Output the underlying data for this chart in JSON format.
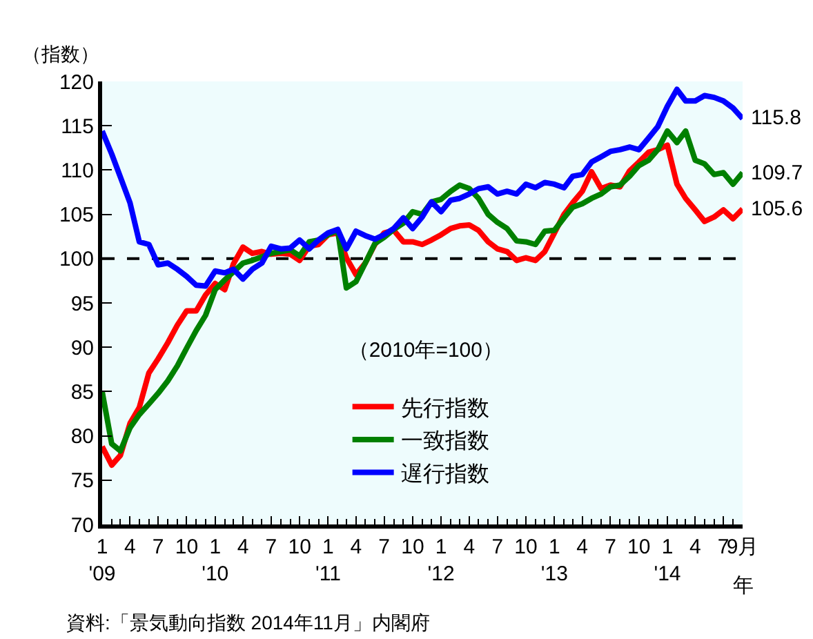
{
  "chart_data": {
    "type": "line",
    "ylabel": "（指数）",
    "legend_title": "（2010年=100）",
    "x": [
      "2009-01",
      "2009-02",
      "2009-03",
      "2009-04",
      "2009-05",
      "2009-06",
      "2009-07",
      "2009-08",
      "2009-09",
      "2009-10",
      "2009-11",
      "2009-12",
      "2010-01",
      "2010-02",
      "2010-03",
      "2010-04",
      "2010-05",
      "2010-06",
      "2010-07",
      "2010-08",
      "2010-09",
      "2010-10",
      "2010-11",
      "2010-12",
      "2011-01",
      "2011-02",
      "2011-03",
      "2011-04",
      "2011-05",
      "2011-06",
      "2011-07",
      "2011-08",
      "2011-09",
      "2011-10",
      "2011-11",
      "2011-12",
      "2012-01",
      "2012-02",
      "2012-03",
      "2012-04",
      "2012-05",
      "2012-06",
      "2012-07",
      "2012-08",
      "2012-09",
      "2012-10",
      "2012-11",
      "2012-12",
      "2013-01",
      "2013-02",
      "2013-03",
      "2013-04",
      "2013-05",
      "2013-06",
      "2013-07",
      "2013-08",
      "2013-09",
      "2013-10",
      "2013-11",
      "2013-12",
      "2014-01",
      "2014-02",
      "2014-03",
      "2014-04",
      "2014-05",
      "2014-06",
      "2014-07",
      "2014-08",
      "2014-09"
    ],
    "series": [
      {
        "name": "先行指数",
        "color": "#ff0000",
        "values": [
          78.8,
          76.7,
          77.8,
          81.4,
          83.2,
          87.1,
          88.7,
          90.5,
          92.5,
          94.1,
          94.1,
          95.9,
          97.2,
          96.5,
          99.4,
          101.3,
          100.6,
          100.8,
          100.5,
          100.6,
          100.5,
          99.8,
          101.4,
          101.6,
          102.7,
          102.9,
          100.1,
          98.2,
          99.5,
          101.6,
          102.9,
          103.2,
          101.9,
          101.9,
          101.6,
          102.1,
          102.7,
          103.4,
          103.7,
          103.8,
          103.2,
          101.9,
          101.1,
          100.8,
          99.8,
          100.1,
          99.8,
          100.8,
          102.9,
          105.0,
          106.3,
          107.6,
          109.8,
          107.9,
          108.3,
          108.1,
          109.9,
          110.9,
          112.0,
          112.3,
          112.8,
          108.4,
          106.8,
          105.5,
          104.2,
          104.7,
          105.5,
          104.5,
          105.6
        ]
      },
      {
        "name": "一致指数",
        "color": "#008000",
        "values": [
          85.0,
          79.1,
          78.3,
          80.9,
          82.4,
          83.6,
          84.8,
          86.2,
          87.9,
          89.9,
          91.9,
          93.6,
          96.5,
          97.6,
          98.5,
          99.5,
          99.8,
          100.2,
          100.6,
          100.8,
          101.0,
          100.3,
          101.9,
          102.1,
          102.7,
          103.2,
          96.7,
          97.4,
          99.5,
          101.7,
          102.4,
          103.3,
          104.0,
          105.3,
          105.0,
          106.4,
          106.7,
          107.6,
          108.3,
          107.9,
          106.8,
          105.0,
          104.1,
          103.4,
          102.0,
          101.9,
          101.6,
          103.1,
          103.2,
          104.6,
          105.8,
          106.2,
          106.8,
          107.3,
          108.1,
          108.3,
          109.3,
          110.5,
          111.1,
          112.3,
          114.4,
          113.1,
          114.4,
          111.1,
          110.7,
          109.5,
          109.7,
          108.4,
          109.7
        ]
      },
      {
        "name": "遅行指数",
        "color": "#0000ff",
        "values": [
          114.4,
          111.8,
          109.2,
          106.3,
          101.9,
          101.6,
          99.3,
          99.5,
          98.8,
          98.0,
          97.0,
          96.9,
          98.6,
          98.4,
          98.8,
          97.7,
          98.8,
          99.5,
          101.4,
          101.1,
          101.2,
          102.1,
          101.1,
          102.1,
          102.9,
          103.3,
          101.1,
          103.1,
          102.6,
          102.2,
          102.7,
          103.4,
          104.6,
          103.4,
          104.7,
          106.4,
          105.3,
          106.6,
          106.8,
          107.3,
          107.9,
          108.1,
          107.3,
          107.6,
          107.3,
          108.4,
          108.0,
          108.6,
          108.4,
          108.0,
          109.3,
          109.5,
          110.9,
          111.5,
          112.1,
          112.3,
          112.6,
          112.3,
          113.6,
          114.9,
          117.2,
          119.1,
          117.8,
          117.8,
          118.4,
          118.2,
          117.8,
          117.0,
          115.8
        ]
      }
    ],
    "xlim": [
      "2009-01",
      "2014-09"
    ],
    "xticks": [
      {
        "value": "2009-01",
        "label": "1\n'09"
      },
      {
        "value": "2009-04",
        "label": "4"
      },
      {
        "value": "2009-07",
        "label": "7"
      },
      {
        "value": "2009-10",
        "label": "10"
      },
      {
        "value": "2010-01",
        "label": "1\n'10"
      },
      {
        "value": "2010-04",
        "label": "4"
      },
      {
        "value": "2010-07",
        "label": "7"
      },
      {
        "value": "2010-10",
        "label": "10"
      },
      {
        "value": "2011-01",
        "label": "1\n'11"
      },
      {
        "value": "2011-04",
        "label": "4"
      },
      {
        "value": "2011-07",
        "label": "7"
      },
      {
        "value": "2011-10",
        "label": "10"
      },
      {
        "value": "2012-01",
        "label": "1\n'12"
      },
      {
        "value": "2012-04",
        "label": "4"
      },
      {
        "value": "2012-07",
        "label": "7"
      },
      {
        "value": "2012-10",
        "label": "10"
      },
      {
        "value": "2013-01",
        "label": "1\n'13"
      },
      {
        "value": "2013-04",
        "label": "4"
      },
      {
        "value": "2013-07",
        "label": "7"
      },
      {
        "value": "2013-10",
        "label": "10"
      },
      {
        "value": "2014-01",
        "label": "1\n'14"
      },
      {
        "value": "2014-04",
        "label": "4"
      },
      {
        "value": "2014-07",
        "label": "7"
      },
      {
        "value": "2014-09",
        "label": "9月"
      }
    ],
    "xlabel": "年",
    "ylim": [
      70,
      120
    ],
    "yticks": [
      70,
      75,
      80,
      85,
      90,
      95,
      100,
      105,
      110,
      115,
      120
    ],
    "ref_lines": [
      {
        "axis": "y",
        "value": 100,
        "color": "#000000",
        "line_style": "dashed"
      }
    ],
    "annotations": [
      {
        "text": "115.8",
        "x": "2014-09",
        "y": 115.8
      },
      {
        "text": "109.7",
        "x": "2014-09",
        "y": 109.7
      },
      {
        "text": "105.6",
        "x": "2014-09",
        "y": 105.6
      },
      "資料:「景気動向指数 2014年11月」内閣府"
    ],
    "grid": false,
    "legend": "bottom",
    "marker": "none",
    "line_style": "solid"
  }
}
